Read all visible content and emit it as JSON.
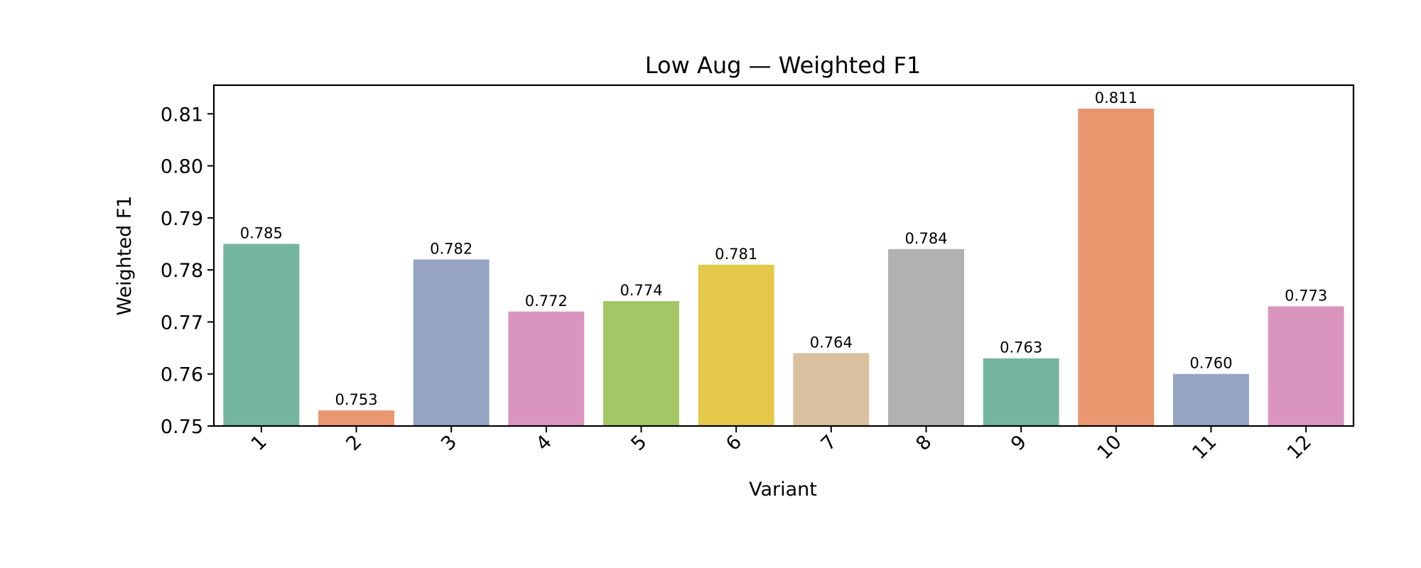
{
  "chart_data": {
    "type": "bar",
    "title": "Low Aug — Weighted F1",
    "xlabel": "Variant",
    "ylabel": "Weighted F1",
    "categories": [
      "1",
      "2",
      "3",
      "4",
      "5",
      "6",
      "7",
      "8",
      "9",
      "10",
      "11",
      "12"
    ],
    "values": [
      0.785,
      0.753,
      0.782,
      0.772,
      0.774,
      0.781,
      0.764,
      0.784,
      0.763,
      0.811,
      0.76,
      0.773
    ],
    "value_labels": [
      "0.785",
      "0.753",
      "0.782",
      "0.772",
      "0.774",
      "0.781",
      "0.764",
      "0.784",
      "0.763",
      "0.811",
      "0.760",
      "0.773"
    ],
    "colors": [
      "#74b59f",
      "#e9976f",
      "#95a4c2",
      "#da95bf",
      "#a3c765",
      "#e4c84a",
      "#d9c19f",
      "#b1b1b1",
      "#74b59f",
      "#e9976f",
      "#95a4c2",
      "#da95bf"
    ],
    "ylim": [
      0.75,
      0.8155
    ],
    "yticks": [
      0.75,
      0.76,
      0.77,
      0.78,
      0.79,
      0.8,
      0.81
    ],
    "ytick_labels": [
      "0.75",
      "0.76",
      "0.77",
      "0.78",
      "0.79",
      "0.80",
      "0.81"
    ],
    "grid": false,
    "legend": "none"
  }
}
